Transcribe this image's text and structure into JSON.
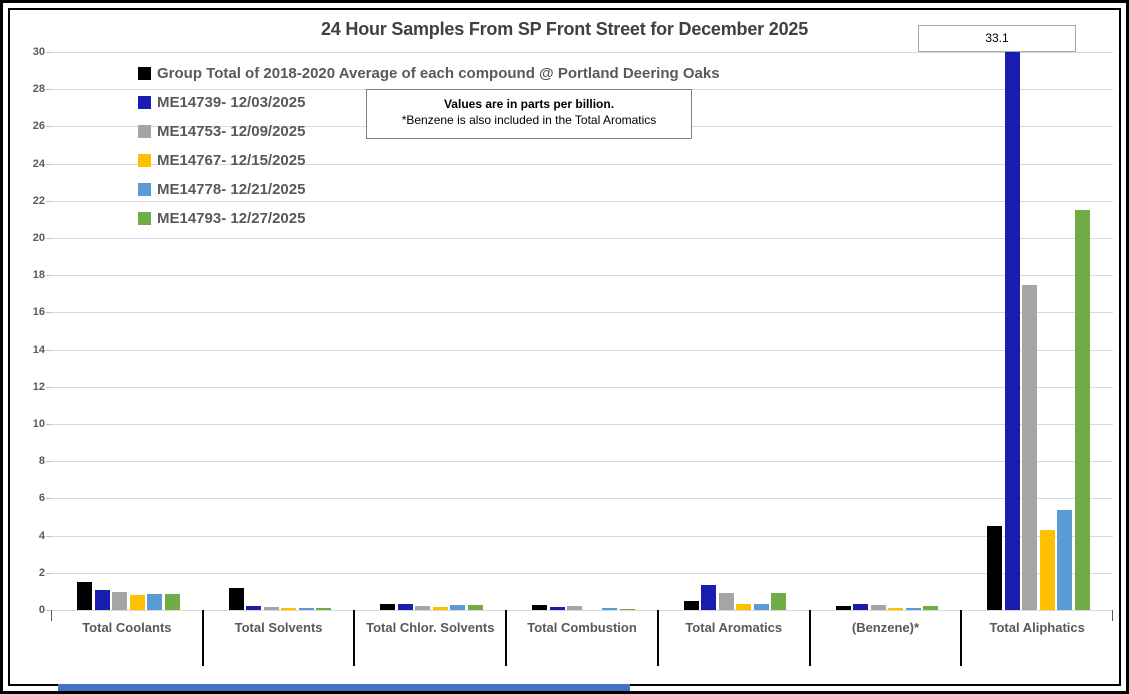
{
  "title": "24 Hour Samples From SP Front Street for December 2025",
  "annotation": {
    "text": "33.1",
    "refers_to": "ME14739- 12/03/2025 bar in Total Aliphatics (clipped at axis max 30)"
  },
  "note": {
    "line1": "Values are in parts per billion.",
    "line2": "*Benzene is also included in the Total Aromatics"
  },
  "colors": {
    "title_text": "#404040",
    "axis_text": "#595959",
    "gridline": "#d9d9d9",
    "box_border": "#808080",
    "bottom_strip": "#4472c4"
  },
  "chart_data": {
    "type": "bar",
    "title": "24 Hour Samples From SP Front Street for December 2025",
    "units": "parts per billion",
    "categories": [
      "Total Coolants",
      "Total Solvents",
      "Total Chlor. Solvents",
      "Total Combustion",
      "Total Aromatics",
      "(Benzene)*",
      "Total Aliphatics"
    ],
    "series": [
      {
        "name": "Group Total of 2018-2020 Average of each compound @ Portland Deering Oaks",
        "color": "#000000",
        "values": [
          1.5,
          1.2,
          0.3,
          0.25,
          0.5,
          0.2,
          4.5
        ]
      },
      {
        "name": "ME14739- 12/03/2025",
        "color": "#1a1cb0",
        "values": [
          1.1,
          0.2,
          0.3,
          0.15,
          1.35,
          0.3,
          33.1
        ]
      },
      {
        "name": "ME14753- 12/09/2025",
        "color": "#a5a5a5",
        "values": [
          0.95,
          0.15,
          0.2,
          0.2,
          0.9,
          0.25,
          17.5
        ]
      },
      {
        "name": "ME14767- 12/15/2025",
        "color": "#ffc000",
        "values": [
          0.8,
          0.1,
          0.15,
          0,
          0.3,
          0.1,
          4.3
        ]
      },
      {
        "name": "ME14778- 12/21/2025",
        "color": "#5b9bd5",
        "values": [
          0.85,
          0.1,
          0.25,
          0.1,
          0.35,
          0.1,
          5.4
        ]
      },
      {
        "name": "ME14793- 12/27/2025",
        "color": "#70ad47",
        "values": [
          0.85,
          0.12,
          0.25,
          0.08,
          0.9,
          0.2,
          21.5
        ]
      }
    ],
    "ylim": [
      0,
      30
    ],
    "yticks": [
      0,
      2,
      4,
      6,
      8,
      10,
      12,
      14,
      16,
      18,
      20,
      22,
      24,
      26,
      28,
      30
    ],
    "grid": true,
    "legend_position": "top-left",
    "clipped_bar": {
      "series": "ME14739- 12/03/2025",
      "category": "Total Aliphatics",
      "value": 33.1,
      "label": "33.1"
    }
  }
}
